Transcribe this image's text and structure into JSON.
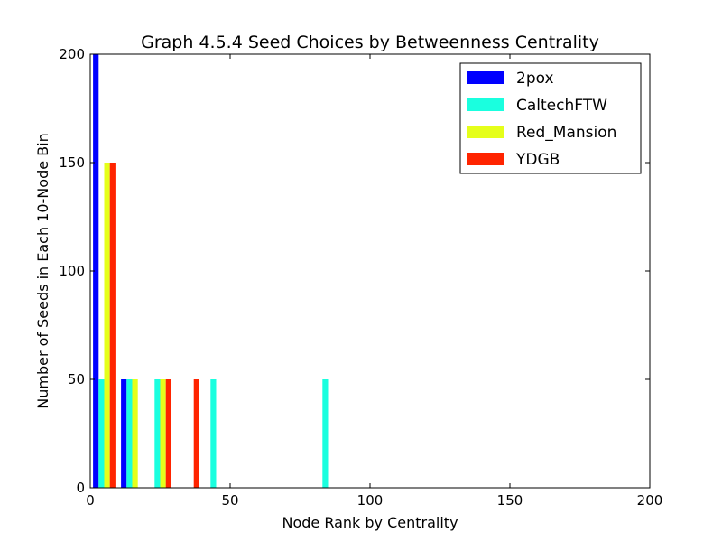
{
  "chart_data": {
    "type": "bar",
    "title": "Graph 4.5.4 Seed Choices by Betweenness Centrality",
    "xlabel": "Node Rank by Centrality",
    "ylabel": "Number of Seeds in Each 10-Node Bin",
    "xlim": [
      0,
      200
    ],
    "ylim": [
      0,
      200
    ],
    "xticks": [
      "0",
      "50",
      "100",
      "150",
      "200"
    ],
    "yticks": [
      "0",
      "50",
      "100",
      "150",
      "200"
    ],
    "grid": false,
    "legend_position": "top-right",
    "series": [
      {
        "name": "2pox",
        "color": "#0000ff",
        "bars": [
          {
            "x0": 1,
            "x1": 3,
            "value": 200
          },
          {
            "x0": 11,
            "x1": 13,
            "value": 50
          }
        ]
      },
      {
        "name": "CaltechFTW",
        "color": "#1affdf",
        "bars": [
          {
            "x0": 3,
            "x1": 5,
            "value": 50
          },
          {
            "x0": 13,
            "x1": 15,
            "value": 50
          },
          {
            "x0": 23,
            "x1": 25,
            "value": 50
          },
          {
            "x0": 43,
            "x1": 45,
            "value": 50
          },
          {
            "x0": 83,
            "x1": 85,
            "value": 50
          }
        ]
      },
      {
        "name": "Red_Mansion",
        "color": "#e5ff1a",
        "bars": [
          {
            "x0": 5,
            "x1": 7,
            "value": 150
          },
          {
            "x0": 15,
            "x1": 17,
            "value": 50
          },
          {
            "x0": 25,
            "x1": 27,
            "value": 50
          }
        ]
      },
      {
        "name": "YDGB",
        "color": "#ff2400",
        "bars": [
          {
            "x0": 7,
            "x1": 9,
            "value": 150
          },
          {
            "x0": 27,
            "x1": 29,
            "value": 50
          },
          {
            "x0": 37,
            "x1": 39,
            "value": 50
          }
        ]
      }
    ]
  }
}
